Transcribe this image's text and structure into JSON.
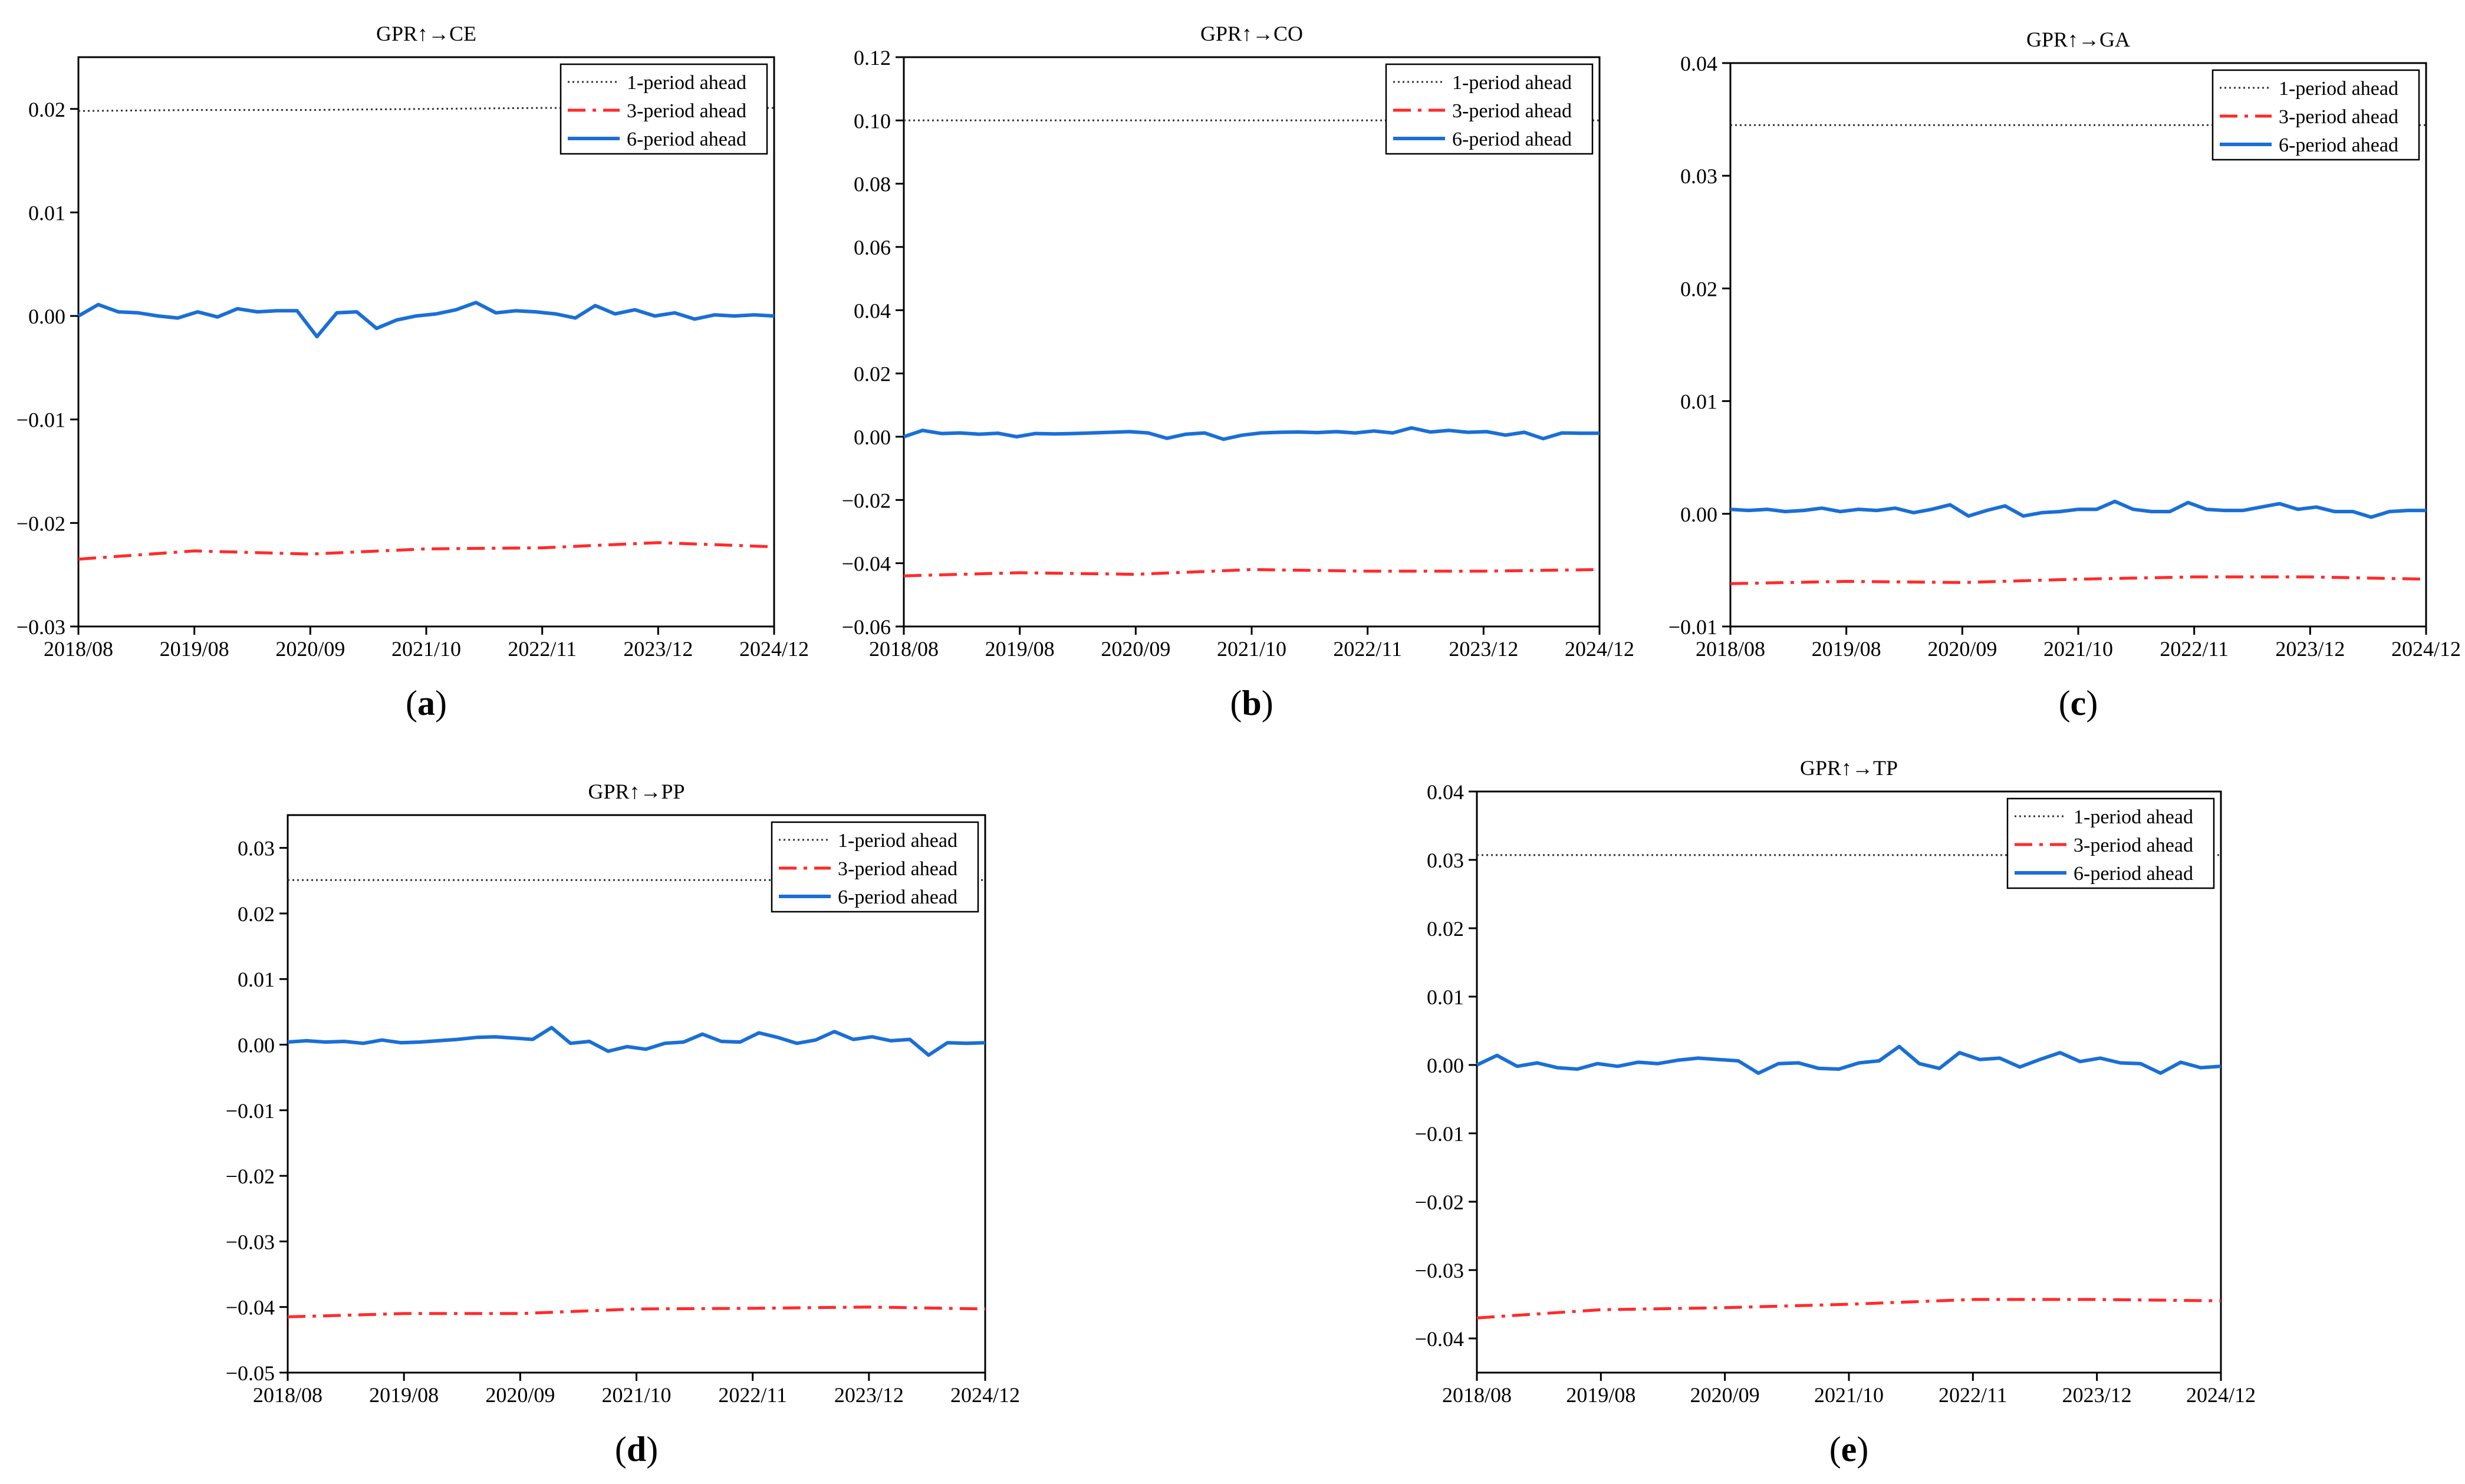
{
  "figure": {
    "x_ticks": [
      "2018/08",
      "2019/08",
      "2020/09",
      "2021/10",
      "2022/11",
      "2023/12",
      "2024/12"
    ],
    "legend": [
      "1-period ahead",
      "3-period ahead",
      "6-period ahead"
    ],
    "colors": {
      "p1": "#333333",
      "p3": "#ff2b2b",
      "p6": "#1a6fd6"
    }
  },
  "chart_data": [
    {
      "id": "a",
      "panel_label": "a",
      "type": "line",
      "title": "GPR↑→CE",
      "ylim": [
        -0.03,
        0.025
      ],
      "yticks": [
        -0.03,
        -0.02,
        -0.01,
        0.0,
        0.01,
        0.02
      ],
      "ytick_labels": [
        "−0.03",
        "−0.02",
        "−0.01",
        "0.00",
        "0.01",
        "0.02"
      ],
      "series": [
        {
          "name": "1-period ahead",
          "values": [
            0.0198,
            0.0199,
            0.0199,
            0.02,
            0.0201,
            0.0201,
            0.0201
          ]
        },
        {
          "name": "3-period ahead",
          "values": [
            -0.0235,
            -0.0227,
            -0.023,
            -0.0225,
            -0.0224,
            -0.0219,
            -0.0223
          ]
        },
        {
          "name": "6-period ahead",
          "values": [
            0.0,
            0.0011,
            0.0004,
            0.0003,
            0.0,
            -0.0002,
            0.0004,
            -0.0001,
            0.0007,
            0.0004,
            0.0005,
            0.0005,
            -0.002,
            0.0003,
            0.0004,
            -0.0012,
            -0.0004,
            0.0,
            0.0002,
            0.0006,
            0.0013,
            0.0003,
            0.0005,
            0.0004,
            0.0002,
            -0.0002,
            0.001,
            0.0002,
            0.0006,
            0.0,
            0.0003,
            -0.0003,
            0.0001,
            0.0,
            0.0001,
            0.0
          ]
        }
      ]
    },
    {
      "id": "b",
      "panel_label": "b",
      "type": "line",
      "title": "GPR↑→CO",
      "ylim": [
        -0.06,
        0.12
      ],
      "yticks": [
        -0.06,
        -0.04,
        -0.02,
        0.0,
        0.02,
        0.04,
        0.06,
        0.08,
        0.1,
        0.12
      ],
      "ytick_labels": [
        "−0.06",
        "−0.04",
        "−0.02",
        "0.00",
        "0.02",
        "0.04",
        "0.06",
        "0.08",
        "0.10",
        "0.12"
      ],
      "series": [
        {
          "name": "1-period ahead",
          "values": [
            0.1,
            0.1,
            0.1,
            0.1,
            0.1,
            0.1,
            0.1
          ]
        },
        {
          "name": "3-period ahead",
          "values": [
            -0.044,
            -0.043,
            -0.0435,
            -0.042,
            -0.0425,
            -0.0425,
            -0.042
          ]
        },
        {
          "name": "6-period ahead",
          "values": [
            0.0,
            0.002,
            0.001,
            0.0012,
            0.0008,
            0.0011,
            0.0,
            0.001,
            0.0009,
            0.001,
            0.0012,
            0.0014,
            0.0016,
            0.0012,
            -0.0005,
            0.0008,
            0.0012,
            -0.0008,
            0.0005,
            0.0012,
            0.0014,
            0.0015,
            0.0013,
            0.0016,
            0.0012,
            0.0018,
            0.0012,
            0.0028,
            0.0015,
            0.002,
            0.0014,
            0.0016,
            0.0005,
            0.0014,
            -0.0006,
            0.0012,
            0.0011,
            0.0011
          ]
        }
      ]
    },
    {
      "id": "c",
      "panel_label": "c",
      "type": "line",
      "title": "GPR↑→GA",
      "ylim": [
        -0.01,
        0.04
      ],
      "yticks": [
        -0.01,
        0.0,
        0.01,
        0.02,
        0.03,
        0.04
      ],
      "ytick_labels": [
        "−0.01",
        "0.00",
        "0.01",
        "0.02",
        "0.03",
        "0.04"
      ],
      "series": [
        {
          "name": "1-period ahead",
          "values": [
            0.0345,
            0.0345,
            0.0345,
            0.0345,
            0.0345,
            0.0345,
            0.0345
          ]
        },
        {
          "name": "3-period ahead",
          "values": [
            -0.0062,
            -0.006,
            -0.0061,
            -0.0058,
            -0.0056,
            -0.0056,
            -0.0058
          ]
        },
        {
          "name": "6-period ahead",
          "values": [
            0.0004,
            0.0003,
            0.0004,
            0.0002,
            0.0003,
            0.0005,
            0.0002,
            0.0004,
            0.0003,
            0.0005,
            0.0001,
            0.0004,
            0.0008,
            -0.0002,
            0.0003,
            0.0007,
            -0.0002,
            0.0001,
            0.0002,
            0.0004,
            0.0004,
            0.0011,
            0.0004,
            0.0002,
            0.0002,
            0.001,
            0.0004,
            0.0003,
            0.0003,
            0.0006,
            0.0009,
            0.0004,
            0.0006,
            0.0002,
            0.0002,
            -0.0003,
            0.0002,
            0.0003,
            0.0003
          ]
        }
      ]
    },
    {
      "id": "d",
      "panel_label": "d",
      "type": "line",
      "title": "GPR↑→PP",
      "ylim": [
        -0.05,
        0.035
      ],
      "yticks": [
        -0.05,
        -0.04,
        -0.03,
        -0.02,
        -0.01,
        0.0,
        0.01,
        0.02,
        0.03
      ],
      "ytick_labels": [
        "−0.05",
        "−0.04",
        "−0.03",
        "−0.02",
        "−0.01",
        "0.00",
        "0.01",
        "0.02",
        "0.03"
      ],
      "series": [
        {
          "name": "1-period ahead",
          "values": [
            0.0251,
            0.0251,
            0.0251,
            0.0251,
            0.0251,
            0.0251,
            0.0251
          ]
        },
        {
          "name": "3-period ahead",
          "values": [
            -0.0415,
            -0.041,
            -0.041,
            -0.0403,
            -0.0402,
            -0.04,
            -0.0403
          ]
        },
        {
          "name": "6-period ahead",
          "values": [
            0.0004,
            0.0006,
            0.0004,
            0.0005,
            0.0002,
            0.0007,
            0.0003,
            0.0004,
            0.0006,
            0.0008,
            0.0011,
            0.0012,
            0.001,
            0.0008,
            0.0026,
            0.0002,
            0.0005,
            -0.001,
            -0.0003,
            -0.0007,
            0.0002,
            0.0004,
            0.0016,
            0.0005,
            0.0004,
            0.0018,
            0.0011,
            0.0002,
            0.0007,
            0.002,
            0.0008,
            0.0012,
            0.0006,
            0.0008,
            -0.0016,
            0.0003,
            0.0002,
            0.0003
          ]
        }
      ]
    },
    {
      "id": "e",
      "panel_label": "e",
      "type": "line",
      "title": "GPR↑→TP",
      "ylim": [
        -0.045,
        0.04
      ],
      "yticks": [
        -0.04,
        -0.03,
        -0.02,
        -0.01,
        0.0,
        0.01,
        0.02,
        0.03,
        0.04
      ],
      "ytick_labels": [
        "−0.04",
        "−0.03",
        "−0.02",
        "−0.01",
        "0.00",
        "0.01",
        "0.02",
        "0.03",
        "0.04"
      ],
      "series": [
        {
          "name": "1-period ahead",
          "values": [
            0.0307,
            0.0307,
            0.0307,
            0.0307,
            0.0307,
            0.0307,
            0.0307
          ]
        },
        {
          "name": "3-period ahead",
          "values": [
            -0.037,
            -0.0358,
            -0.0355,
            -0.035,
            -0.0343,
            -0.0343,
            -0.0345
          ]
        },
        {
          "name": "6-period ahead",
          "values": [
            0.0,
            0.0014,
            -0.0002,
            0.0003,
            -0.0004,
            -0.0006,
            0.0002,
            -0.0002,
            0.0004,
            0.0002,
            0.0007,
            0.001,
            0.0008,
            0.0006,
            -0.0012,
            0.0002,
            0.0003,
            -0.0005,
            -0.0006,
            0.0003,
            0.0006,
            0.0027,
            0.0002,
            -0.0005,
            0.0018,
            0.0008,
            0.001,
            -0.0003,
            0.0008,
            0.0018,
            0.0005,
            0.001,
            0.0003,
            0.0002,
            -0.0012,
            0.0004,
            -0.0004,
            -0.0002
          ]
        }
      ]
    }
  ]
}
